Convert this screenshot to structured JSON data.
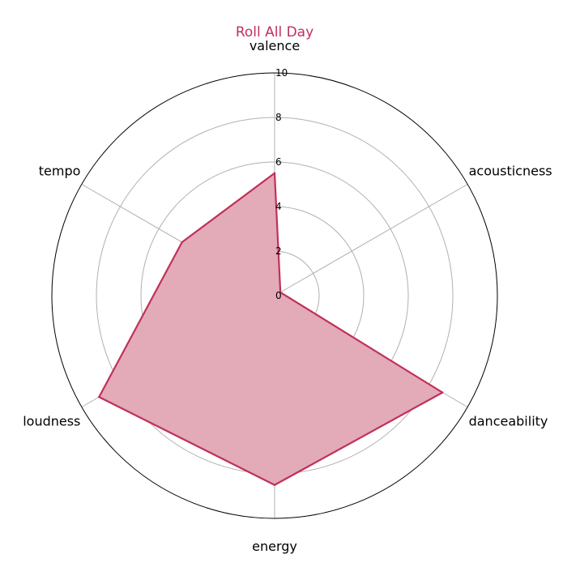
{
  "chart_data": {
    "type": "radar",
    "title": "Roll All Day",
    "axes": [
      "valence",
      "acousticness",
      "danceability",
      "energy",
      "loudness",
      "tempo"
    ],
    "series": [
      {
        "values": [
          5.5,
          0.3,
          8.7,
          8.5,
          9.1,
          4.8
        ]
      }
    ],
    "rlim": [
      0,
      10
    ],
    "rticks": [
      "0",
      "2",
      "4",
      "6",
      "8",
      "10"
    ],
    "grid": true,
    "colors": {
      "series": "#c0305a",
      "fill": "#e3aab8",
      "grid": "#b0b0b0",
      "title": "#c0305a"
    }
  }
}
